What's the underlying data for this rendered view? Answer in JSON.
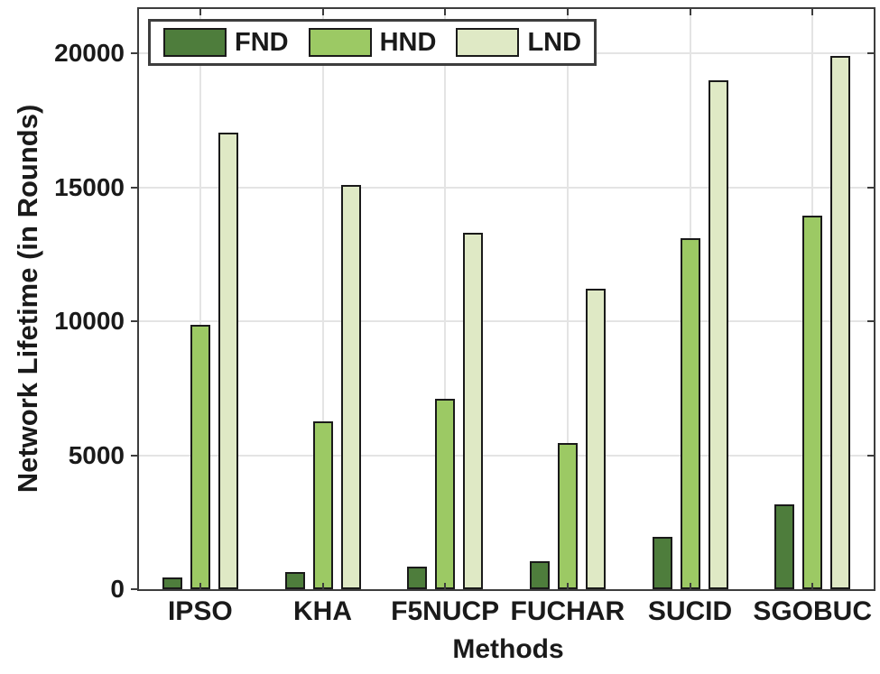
{
  "chart_data": {
    "type": "bar",
    "title": "",
    "xlabel": "Methods",
    "ylabel": "Network Lifetime (in Rounds)",
    "categories": [
      "IPSO",
      "KHA",
      "F5NUCP",
      "FUCHAR",
      "SUCID",
      "SGOBUC"
    ],
    "series": [
      {
        "name": "FND",
        "color": "#4e7d3c",
        "values": [
          450,
          650,
          850,
          1050,
          1950,
          3150
        ]
      },
      {
        "name": "HND",
        "color": "#9cc964",
        "values": [
          9850,
          6250,
          7100,
          5450,
          13100,
          13950
        ]
      },
      {
        "name": "LND",
        "color": "#dfe9c5",
        "values": [
          17050,
          15100,
          13300,
          11200,
          19000,
          19900
        ]
      }
    ],
    "yticks": [
      0,
      5000,
      10000,
      15000,
      20000
    ],
    "ytick_labels": [
      "0",
      "5000",
      "10000",
      "15000",
      "20000"
    ],
    "ylim": [
      0,
      21650
    ],
    "grid": true,
    "legend": {
      "position": "top-left",
      "orientation": "horizontal",
      "labels": [
        "FND",
        "HND",
        "LND"
      ]
    },
    "colors": {
      "bar_edge": "#1a1a1a",
      "axis": "#3d3d3d",
      "grid": "#e4e4e4",
      "text": "#1a1a1a",
      "background": "#ffffff"
    }
  }
}
